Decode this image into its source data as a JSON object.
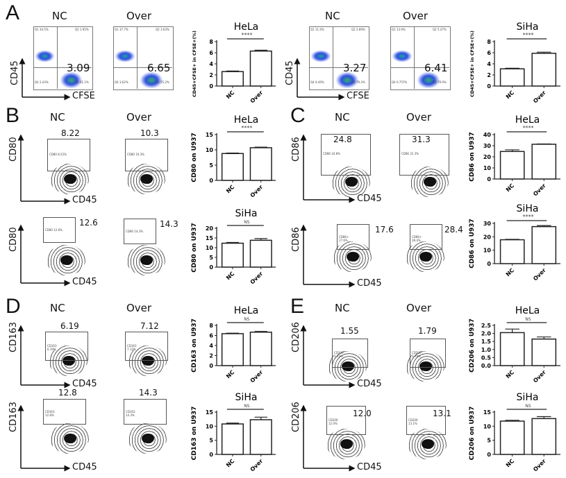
{
  "panels": {
    "A": "A",
    "B": "B",
    "C": "C",
    "D": "D",
    "E": "E"
  },
  "columns": {
    "nc": "NC",
    "over": "Over"
  },
  "axes": {
    "A": {
      "y": "CD45",
      "x": "CFSE"
    },
    "B": {
      "y": "CD80",
      "x": "CD45"
    },
    "C": {
      "y": "CD86",
      "x": "CD45"
    },
    "D": {
      "y": "CD163",
      "x": "CD45"
    },
    "E": {
      "y": "CD206",
      "x": "CD45"
    }
  },
  "flow": [
    {
      "id": "A-HeLa-NC",
      "value": "3.09",
      "quadrants": [
        "Q1 34.5%",
        "Q2 1.95%",
        "Q4 2.43%",
        "Q3 61.1%"
      ]
    },
    {
      "id": "A-HeLa-Over",
      "value": "6.65",
      "quadrants": [
        "Q1 37.7%",
        "Q2 3.63%",
        "Q4 3.62%",
        "Q3 55.2%"
      ]
    },
    {
      "id": "A-SiHa-NC",
      "value": "3.27",
      "quadrants": [
        "Q1 11.4%",
        "Q2 2.89%",
        "Q4 6.49%",
        "Q3 79.3%"
      ]
    },
    {
      "id": "A-SiHa-Over",
      "value": "6.41",
      "quadrants": [
        "Q1 13.9%",
        "Q2 5.47%",
        "Q4 0.757%",
        "Q3 79.9%"
      ]
    },
    {
      "id": "B-HeLa-NC",
      "value": "8.22",
      "gate": "CD80 8.22%"
    },
    {
      "id": "B-HeLa-Over",
      "value": "10.3",
      "gate": "CD80 10.3%"
    },
    {
      "id": "B-SiHa-NC",
      "value": "12.6",
      "gate": "CD80 12.6%"
    },
    {
      "id": "B-SiHa-Over",
      "value": "14.3",
      "gate": "CD80 14.3%"
    },
    {
      "id": "C-HeLa-NC",
      "value": "24.8",
      "gate": "CD86 24.8%"
    },
    {
      "id": "C-HeLa-Over",
      "value": "31.3",
      "gate": "CD86 31.3%"
    },
    {
      "id": "C-SiHa-NC",
      "value": "17.6",
      "gate": "CD86+ 17.6%"
    },
    {
      "id": "C-SiHa-Over",
      "value": "28.4",
      "gate": "CD86+ 28.4%"
    },
    {
      "id": "D-HeLa-NC",
      "value": "6.19",
      "gate": "CD163 6.19%"
    },
    {
      "id": "D-HeLa-Over",
      "value": "7.12",
      "gate": "CD163 7.12%"
    },
    {
      "id": "D-SiHa-NC",
      "value": "12.8",
      "gate": "CD163 12.8%"
    },
    {
      "id": "D-SiHa-Over",
      "value": "14.3",
      "gate": "CD163 14.3%"
    },
    {
      "id": "E-HeLa-NC",
      "value": "1.55",
      "gate": "CD206 1.55%"
    },
    {
      "id": "E-HeLa-Over",
      "value": "1.79",
      "gate": "CD206 1.79%"
    },
    {
      "id": "E-SiHa-NC",
      "value": "12.0",
      "gate": "CD206 12.0%"
    },
    {
      "id": "E-SiHa-Over",
      "value": "13.1",
      "gate": "CD206 13.1%"
    }
  ],
  "chart_data": [
    {
      "type": "bar",
      "panel": "A",
      "title": "HeLa",
      "ylabel": "CD45+CFSE+ in CFSE+(%)",
      "categories": [
        "NC",
        "Over"
      ],
      "values": [
        2.6,
        6.3
      ],
      "errors": [
        0.1,
        0.15
      ],
      "ylim": [
        0,
        8
      ],
      "yticks": [
        0,
        2,
        4,
        6,
        8
      ],
      "significance": "****"
    },
    {
      "type": "bar",
      "panel": "A",
      "title": "SiHa",
      "ylabel": "CD45+CFSE+ in CFSE+(%)",
      "categories": [
        "NC",
        "Over"
      ],
      "values": [
        3.1,
        5.9
      ],
      "errors": [
        0.1,
        0.2
      ],
      "ylim": [
        0,
        8
      ],
      "yticks": [
        0,
        2,
        4,
        6,
        8
      ],
      "significance": "****"
    },
    {
      "type": "bar",
      "panel": "B",
      "title": "HeLa",
      "ylabel": "CD80 on U937",
      "categories": [
        "NC",
        "Over"
      ],
      "values": [
        8.8,
        10.7
      ],
      "errors": [
        0.15,
        0.2
      ],
      "ylim": [
        0,
        15
      ],
      "yticks": [
        0,
        5,
        10,
        15
      ],
      "significance": "****"
    },
    {
      "type": "bar",
      "panel": "B",
      "title": "SiHa",
      "ylabel": "CD80 on U937",
      "categories": [
        "NC",
        "Over"
      ],
      "values": [
        12.3,
        13.8
      ],
      "errors": [
        0.4,
        0.9
      ],
      "ylim": [
        0,
        20
      ],
      "yticks": [
        0,
        5,
        10,
        15,
        20
      ],
      "significance": "NS"
    },
    {
      "type": "bar",
      "panel": "C",
      "title": "HeLa",
      "ylabel": "CD86 on U937",
      "categories": [
        "NC",
        "Over"
      ],
      "values": [
        24.8,
        31.3
      ],
      "errors": [
        1.5,
        0.3
      ],
      "ylim": [
        0,
        40
      ],
      "yticks": [
        0,
        10,
        20,
        30,
        40
      ],
      "significance": "****"
    },
    {
      "type": "bar",
      "panel": "C",
      "title": "SiHa",
      "ylabel": "CD86 on U937",
      "categories": [
        "NC",
        "Over"
      ],
      "values": [
        17.8,
        27.6
      ],
      "errors": [
        0.3,
        0.8
      ],
      "ylim": [
        0,
        30
      ],
      "yticks": [
        0,
        10,
        20,
        30
      ],
      "significance": "****"
    },
    {
      "type": "bar",
      "panel": "D",
      "title": "HeLa",
      "ylabel": "CD163 on U937",
      "categories": [
        "NC",
        "Over"
      ],
      "values": [
        6.35,
        6.65
      ],
      "errors": [
        0.1,
        0.15
      ],
      "ylim": [
        0,
        8
      ],
      "yticks": [
        0,
        2,
        4,
        6,
        8
      ],
      "significance": "NS"
    },
    {
      "type": "bar",
      "panel": "D",
      "title": "SiHa",
      "ylabel": "CD163 on U937",
      "categories": [
        "NC",
        "Over"
      ],
      "values": [
        10.8,
        12.3
      ],
      "errors": [
        0.3,
        0.9
      ],
      "ylim": [
        0,
        15
      ],
      "yticks": [
        0,
        5,
        10,
        15
      ],
      "significance": "NS"
    },
    {
      "type": "bar",
      "panel": "E",
      "title": "HeLa",
      "ylabel": "CD206 on U937",
      "categories": [
        "NC",
        "Over"
      ],
      "values": [
        2.05,
        1.65
      ],
      "errors": [
        0.22,
        0.13
      ],
      "ylim": [
        0,
        2.5
      ],
      "yticks": [
        "0.0",
        "0.5",
        "1.0",
        "1.5",
        "2.0",
        "2.5"
      ],
      "significance": "NS"
    },
    {
      "type": "bar",
      "panel": "E",
      "title": "SiHa",
      "ylabel": "CD206 on U937",
      "categories": [
        "NC",
        "Over"
      ],
      "values": [
        11.8,
        12.7
      ],
      "errors": [
        0.3,
        0.7
      ],
      "ylim": [
        0,
        15
      ],
      "yticks": [
        0,
        5,
        10,
        15
      ],
      "significance": "NS"
    }
  ]
}
